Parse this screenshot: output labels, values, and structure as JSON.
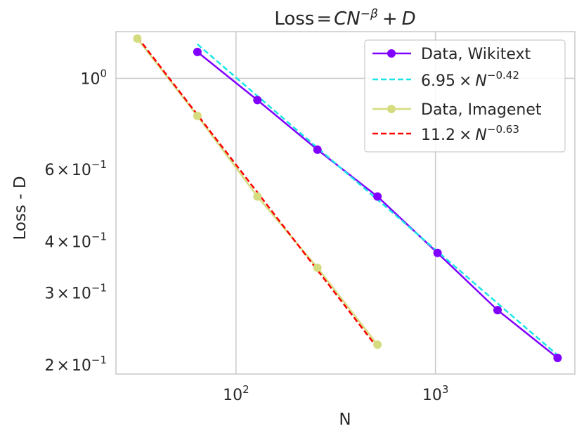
{
  "chart_data": {
    "type": "line",
    "title": {
      "prefix": "Loss",
      "equals": "=",
      "C": "C",
      "N": "N",
      "exponent": "−β",
      "plus": "+",
      "D": "D"
    },
    "xlabel": "N",
    "ylabel": "Loss - D",
    "xscale": "log",
    "yscale": "log",
    "xlim": [
      25,
      5000
    ],
    "ylim": [
      0.19,
      1.3
    ],
    "grid": true,
    "legend_loc": "upper right",
    "x_ticks": [
      {
        "value": 100,
        "base": "10",
        "exp": "2"
      },
      {
        "value": 1000,
        "base": "10",
        "exp": "3"
      }
    ],
    "y_ticks": [
      {
        "value": 1.0,
        "kind": "pow",
        "base": "10",
        "exp": "0"
      },
      {
        "value": 0.6,
        "kind": "sci",
        "mant": "6",
        "times": "×",
        "base": "10",
        "exp": "−1"
      },
      {
        "value": 0.4,
        "kind": "sci",
        "mant": "4",
        "times": "×",
        "base": "10",
        "exp": "−1"
      },
      {
        "value": 0.3,
        "kind": "sci",
        "mant": "3",
        "times": "×",
        "base": "10",
        "exp": "−1"
      },
      {
        "value": 0.2,
        "kind": "sci",
        "mant": "2",
        "times": "×",
        "base": "10",
        "exp": "−1"
      }
    ],
    "series": [
      {
        "name": "Data, Wikitext",
        "kind": "data",
        "color": "#8000ff",
        "x": [
          64,
          128,
          256,
          512,
          1024,
          2048,
          4096
        ],
        "y": [
          1.16,
          0.885,
          0.67,
          0.515,
          0.375,
          0.272,
          0.208
        ]
      },
      {
        "name": "6.95 × N^−0.42",
        "kind": "fit",
        "color": "#1ae6e6",
        "coef": 6.95,
        "exponent": -0.42,
        "x_range": [
          64,
          4096
        ],
        "legend": {
          "coef": "6.95",
          "times": "×",
          "var": "N",
          "exp": "−0.42"
        }
      },
      {
        "name": "Data, Imagenet",
        "kind": "data",
        "color": "#d4dc7f",
        "x": [
          32,
          64,
          128,
          256,
          512
        ],
        "y": [
          1.25,
          0.81,
          0.515,
          0.345,
          0.224
        ]
      },
      {
        "name": "11.2 × N^−0.63",
        "kind": "fit",
        "color": "#ff0000",
        "coef": 11.2,
        "exponent": -0.63,
        "x_range": [
          32,
          512
        ],
        "legend": {
          "coef": "11.2",
          "times": "×",
          "var": "N",
          "exp": "−0.63"
        }
      }
    ]
  }
}
